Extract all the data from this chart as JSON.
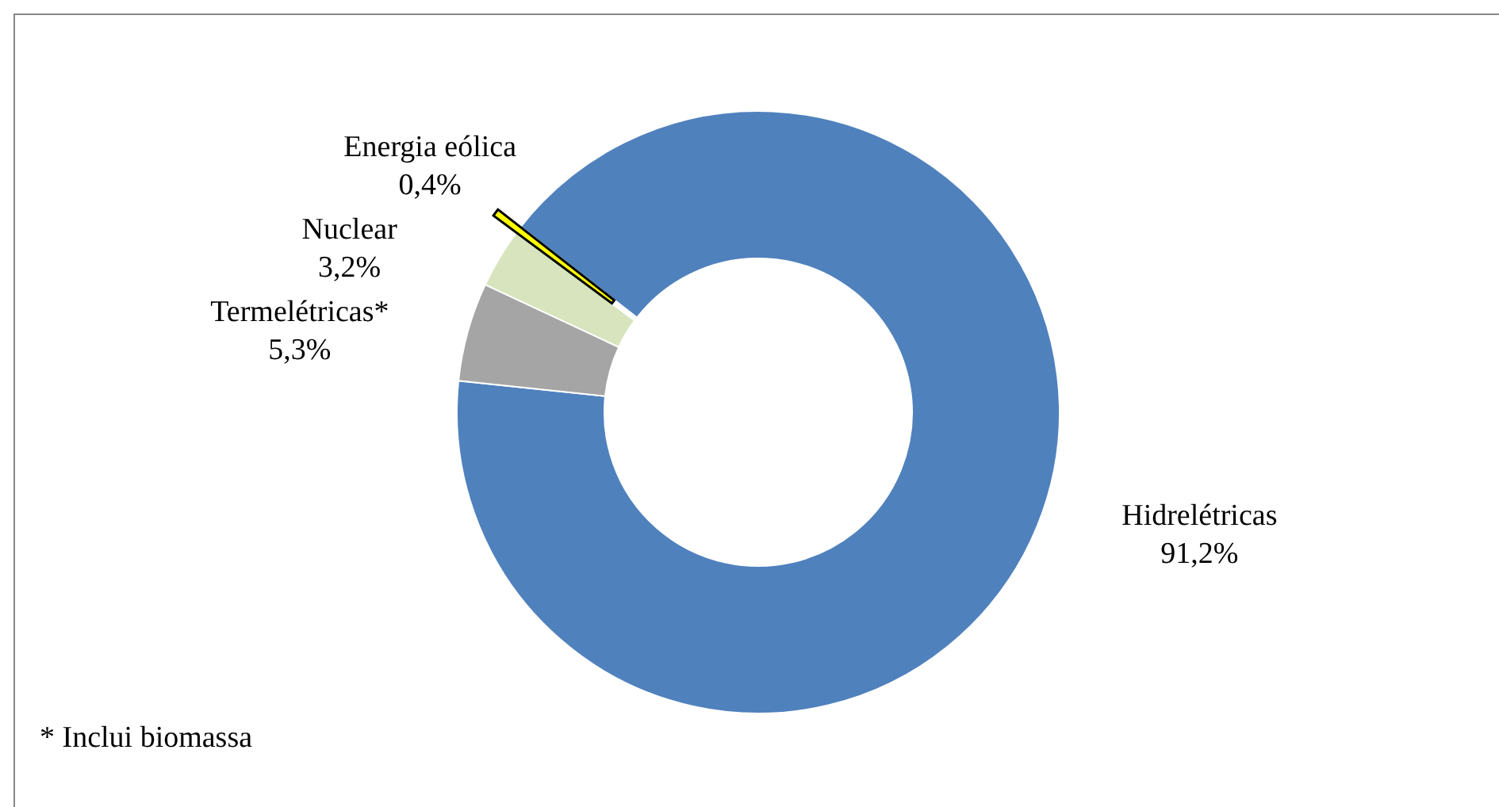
{
  "chart_data": {
    "type": "donut",
    "categories": [
      "Hidrelétricas",
      "Termelétricas*",
      "Nuclear",
      "Energia eólica"
    ],
    "values": [
      91.2,
      5.3,
      3.2,
      0.4
    ],
    "colors": [
      "#4f81bd",
      "#a5a5a5",
      "#d7e4bd",
      "#ffff00"
    ],
    "value_labels": [
      "91,2%",
      "5,3%",
      "3,2%",
      "0,4%"
    ],
    "annotations": [
      "* Inclui biomassa"
    ]
  }
}
